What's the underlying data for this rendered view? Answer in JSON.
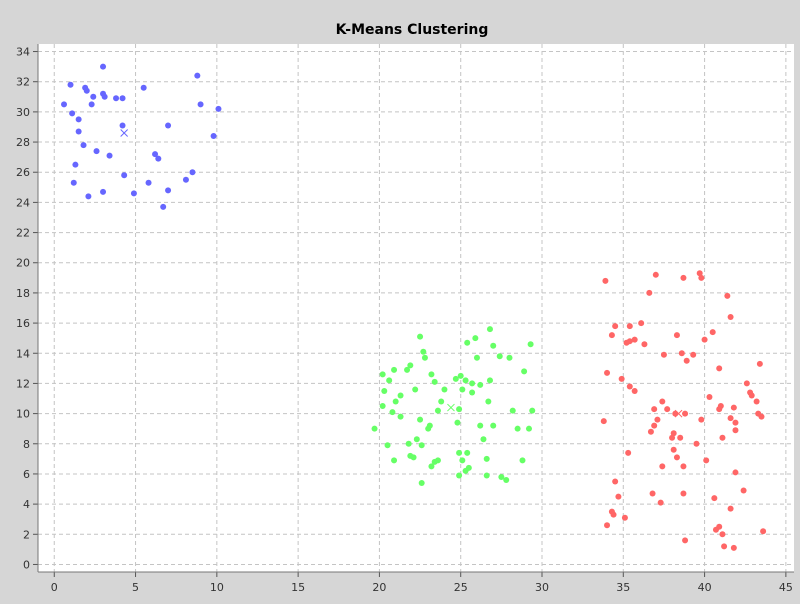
{
  "chart_data": {
    "type": "scatter",
    "title": "K-Means Clustering",
    "xlabel": "",
    "ylabel": "",
    "xlim": [
      -1,
      45.5
    ],
    "ylim": [
      -0.5,
      34.5
    ],
    "xticks": [
      0,
      5,
      10,
      15,
      20,
      25,
      30,
      35,
      40,
      45
    ],
    "yticks": [
      0,
      2,
      4,
      6,
      8,
      10,
      12,
      14,
      16,
      18,
      20,
      22,
      24,
      26,
      28,
      30,
      32,
      34
    ],
    "grid": true,
    "legend": "none",
    "series": [
      {
        "color": "#6666ff",
        "centroid": [
          4.3,
          28.6
        ],
        "points": [
          [
            3.0,
            33.0
          ],
          [
            1.0,
            31.8
          ],
          [
            1.9,
            31.6
          ],
          [
            2.0,
            31.4
          ],
          [
            3.0,
            31.2
          ],
          [
            3.1,
            31.0
          ],
          [
            2.4,
            31.0
          ],
          [
            3.8,
            30.9
          ],
          [
            4.2,
            30.9
          ],
          [
            0.6,
            30.5
          ],
          [
            2.3,
            30.5
          ],
          [
            5.5,
            31.6
          ],
          [
            8.8,
            32.4
          ],
          [
            9.0,
            30.5
          ],
          [
            10.1,
            30.2
          ],
          [
            1.1,
            29.9
          ],
          [
            1.5,
            29.5
          ],
          [
            4.2,
            29.1
          ],
          [
            7.0,
            29.1
          ],
          [
            1.5,
            28.7
          ],
          [
            9.8,
            28.4
          ],
          [
            1.8,
            27.8
          ],
          [
            2.6,
            27.4
          ],
          [
            3.4,
            27.1
          ],
          [
            6.2,
            27.2
          ],
          [
            6.4,
            26.9
          ],
          [
            1.3,
            26.5
          ],
          [
            8.5,
            26.0
          ],
          [
            4.3,
            25.8
          ],
          [
            1.2,
            25.3
          ],
          [
            5.8,
            25.3
          ],
          [
            8.1,
            25.5
          ],
          [
            7.0,
            24.8
          ],
          [
            3.0,
            24.7
          ],
          [
            2.1,
            24.4
          ],
          [
            4.9,
            24.6
          ],
          [
            6.7,
            23.7
          ]
        ]
      },
      {
        "color": "#66ff66",
        "centroid": [
          24.4,
          10.4
        ],
        "points": [
          [
            22.5,
            15.1
          ],
          [
            26.8,
            15.6
          ],
          [
            25.9,
            15.0
          ],
          [
            25.4,
            14.7
          ],
          [
            27.0,
            14.5
          ],
          [
            22.7,
            14.1
          ],
          [
            22.8,
            13.7
          ],
          [
            27.4,
            13.8
          ],
          [
            28.0,
            13.7
          ],
          [
            29.3,
            14.6
          ],
          [
            26.0,
            13.7
          ],
          [
            21.9,
            13.2
          ],
          [
            21.7,
            12.9
          ],
          [
            20.9,
            12.9
          ],
          [
            20.2,
            12.6
          ],
          [
            20.6,
            12.2
          ],
          [
            22.2,
            11.6
          ],
          [
            20.3,
            11.5
          ],
          [
            23.2,
            12.6
          ],
          [
            23.4,
            12.1
          ],
          [
            24.7,
            12.3
          ],
          [
            25.0,
            12.5
          ],
          [
            25.3,
            12.2
          ],
          [
            25.7,
            12.0
          ],
          [
            26.2,
            11.9
          ],
          [
            26.8,
            12.2
          ],
          [
            25.1,
            11.6
          ],
          [
            25.7,
            11.4
          ],
          [
            28.9,
            12.8
          ],
          [
            24.0,
            11.6
          ],
          [
            21.3,
            11.2
          ],
          [
            21.0,
            10.8
          ],
          [
            20.2,
            10.5
          ],
          [
            23.8,
            10.8
          ],
          [
            23.6,
            10.2
          ],
          [
            24.9,
            10.3
          ],
          [
            26.7,
            10.8
          ],
          [
            20.8,
            10.1
          ],
          [
            21.3,
            9.8
          ],
          [
            24.8,
            9.4
          ],
          [
            26.2,
            9.2
          ],
          [
            28.2,
            10.2
          ],
          [
            29.4,
            10.2
          ],
          [
            19.7,
            9.0
          ],
          [
            22.5,
            9.6
          ],
          [
            23.1,
            9.2
          ],
          [
            23.0,
            9.0
          ],
          [
            27.0,
            9.2
          ],
          [
            28.5,
            9.0
          ],
          [
            29.2,
            9.0
          ],
          [
            20.5,
            7.9
          ],
          [
            21.8,
            8.0
          ],
          [
            22.3,
            8.3
          ],
          [
            26.4,
            8.3
          ],
          [
            24.9,
            7.4
          ],
          [
            25.4,
            7.4
          ],
          [
            25.1,
            6.9
          ],
          [
            26.6,
            7.0
          ],
          [
            22.6,
            7.9
          ],
          [
            21.9,
            7.2
          ],
          [
            20.9,
            6.9
          ],
          [
            22.1,
            7.1
          ],
          [
            23.4,
            6.8
          ],
          [
            23.6,
            6.9
          ],
          [
            23.2,
            6.5
          ],
          [
            25.5,
            6.4
          ],
          [
            25.3,
            6.2
          ],
          [
            24.9,
            5.9
          ],
          [
            26.6,
            5.9
          ],
          [
            27.5,
            5.8
          ],
          [
            27.8,
            5.6
          ],
          [
            28.8,
            6.9
          ],
          [
            22.6,
            5.4
          ]
        ]
      },
      {
        "color": "#ff6666",
        "centroid": [
          38.4,
          10.0
        ],
        "points": [
          [
            37.0,
            19.2
          ],
          [
            39.7,
            19.3
          ],
          [
            38.7,
            19.0
          ],
          [
            39.8,
            19.0
          ],
          [
            33.9,
            18.8
          ],
          [
            36.6,
            18.0
          ],
          [
            41.4,
            17.8
          ],
          [
            41.6,
            16.4
          ],
          [
            36.1,
            16.0
          ],
          [
            35.4,
            15.8
          ],
          [
            34.5,
            15.8
          ],
          [
            40.5,
            15.4
          ],
          [
            34.3,
            15.2
          ],
          [
            38.3,
            15.2
          ],
          [
            35.7,
            14.9
          ],
          [
            35.4,
            14.8
          ],
          [
            35.2,
            14.7
          ],
          [
            36.3,
            14.6
          ],
          [
            40.0,
            14.9
          ],
          [
            37.5,
            13.9
          ],
          [
            38.6,
            14.0
          ],
          [
            39.3,
            13.9
          ],
          [
            38.9,
            13.5
          ],
          [
            43.4,
            13.3
          ],
          [
            40.9,
            13.0
          ],
          [
            34.0,
            12.7
          ],
          [
            34.9,
            12.3
          ],
          [
            35.4,
            11.8
          ],
          [
            35.7,
            11.5
          ],
          [
            42.6,
            12.0
          ],
          [
            42.8,
            11.4
          ],
          [
            42.9,
            11.2
          ],
          [
            40.3,
            11.1
          ],
          [
            41.8,
            10.4
          ],
          [
            43.2,
            10.8
          ],
          [
            37.4,
            10.8
          ],
          [
            36.9,
            10.3
          ],
          [
            37.7,
            10.3
          ],
          [
            41.0,
            10.5
          ],
          [
            40.9,
            10.3
          ],
          [
            43.3,
            10.0
          ],
          [
            38.2,
            10.0
          ],
          [
            38.8,
            10.0
          ],
          [
            43.5,
            9.8
          ],
          [
            33.8,
            9.5
          ],
          [
            37.1,
            9.6
          ],
          [
            39.8,
            9.6
          ],
          [
            41.6,
            9.7
          ],
          [
            41.9,
            9.4
          ],
          [
            41.9,
            8.9
          ],
          [
            36.9,
            9.2
          ],
          [
            36.7,
            8.8
          ],
          [
            38.1,
            8.7
          ],
          [
            38.0,
            8.4
          ],
          [
            38.5,
            8.4
          ],
          [
            41.1,
            8.4
          ],
          [
            39.5,
            8.0
          ],
          [
            38.1,
            7.6
          ],
          [
            35.3,
            7.4
          ],
          [
            38.3,
            7.1
          ],
          [
            40.1,
            6.9
          ],
          [
            37.4,
            6.5
          ],
          [
            38.7,
            6.5
          ],
          [
            41.9,
            6.1
          ],
          [
            34.5,
            5.5
          ],
          [
            42.4,
            4.9
          ],
          [
            36.8,
            4.7
          ],
          [
            34.7,
            4.5
          ],
          [
            38.7,
            4.7
          ],
          [
            40.6,
            4.4
          ],
          [
            37.3,
            4.1
          ],
          [
            41.6,
            3.7
          ],
          [
            34.3,
            3.5
          ],
          [
            34.4,
            3.3
          ],
          [
            35.1,
            3.1
          ],
          [
            34.0,
            2.6
          ],
          [
            40.9,
            2.5
          ],
          [
            40.7,
            2.3
          ],
          [
            41.1,
            2.0
          ],
          [
            43.6,
            2.2
          ],
          [
            38.8,
            1.6
          ],
          [
            41.2,
            1.2
          ],
          [
            41.8,
            1.1
          ]
        ]
      }
    ]
  }
}
